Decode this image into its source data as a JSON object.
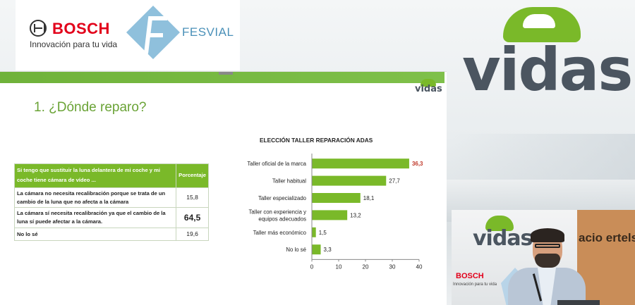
{
  "header": {
    "bosch_word": "BOSCH",
    "bosch_tagline": "Innovación para tu vida",
    "fesvial_word": "FESVIAL",
    "vidas_word": "vidas"
  },
  "slide": {
    "brand": "vidas",
    "title": "1. ¿Dónde reparo?",
    "table": {
      "header_question": "Si tengo que sustituir la luna delantera de mi coche y mi coche tiene cámara de vídeo ...",
      "header_pct": "Porcentaje",
      "rows": [
        {
          "label": "La cámara no necesita recalibración porque se trata de un cambio de la luna que no afecta a la cámara",
          "value": "15,8"
        },
        {
          "label": "La cámara sí necesita recalibración ya que el cambio de la luna sí puede afectar a la cámara.",
          "value": "64,5"
        },
        {
          "label": "No lo sé",
          "value": "19,6"
        }
      ]
    }
  },
  "chart_data": {
    "type": "bar",
    "orientation": "horizontal",
    "title": "ELECCIÓN TALLER REPARACIÓN ADAS",
    "categories": [
      "Taller oficial de la marca",
      "Taller habitual",
      "Taller especializado",
      "Taller con experiencia y equipos adecuados",
      "Taller más económico",
      "No lo sé"
    ],
    "values": [
      36.3,
      27.7,
      18.1,
      13.2,
      1.5,
      3.3
    ],
    "value_labels": [
      "36,3",
      "27,7",
      "18,1",
      "13,2",
      "1,5",
      "3,3"
    ],
    "highlight_index": 0,
    "xlim": [
      0,
      40
    ],
    "xticks": [
      "0",
      "10",
      "20",
      "30",
      "40"
    ],
    "bar_color": "#7ab929",
    "highlight_label_color": "#c0392b",
    "grid": false
  },
  "inset": {
    "vidas_word": "vidas",
    "brand_text": "acio ertelsman",
    "bosch_word": "BOSCH",
    "bosch_tagline": "Innovación para tu vida"
  },
  "colors": {
    "accent_green": "#7ab929",
    "bosch_red": "#e2001a",
    "title_green": "#6aa336"
  }
}
